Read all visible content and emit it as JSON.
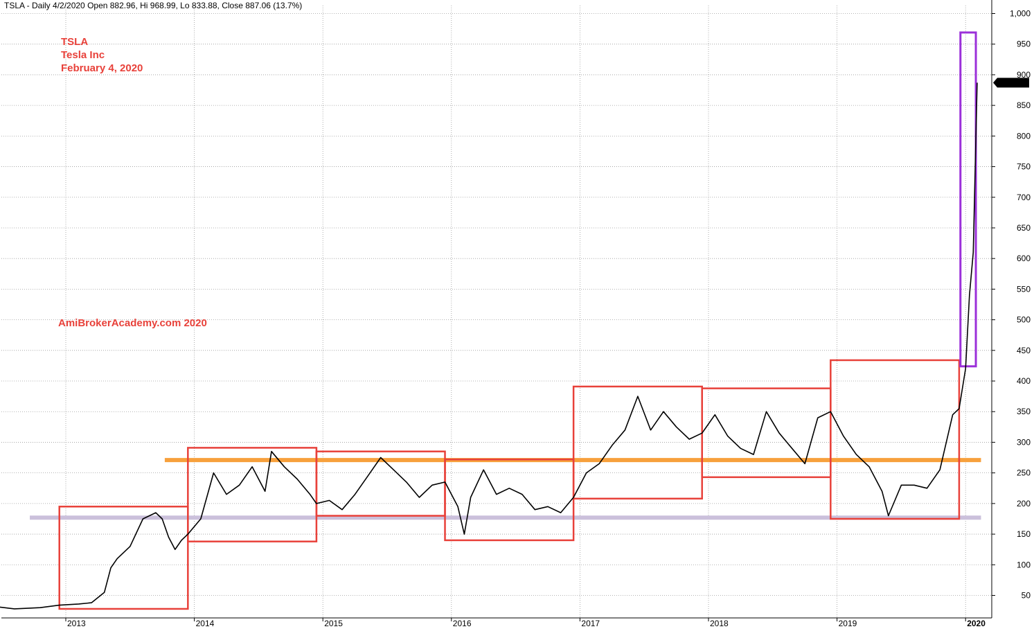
{
  "header": {
    "title": "TSLA - Daily 4/2/2020 Open 882.96, Hi 968.99, Lo 833.88, Close 887.06 (13.7%)"
  },
  "annotations": {
    "ticker": "TSLA",
    "company": "Tesla Inc",
    "date": "February 4, 2020",
    "watermark": "AmiBrokerAcademy.com   2020",
    "text_color": "#e8413a"
  },
  "chart_data": {
    "type": "line",
    "title": "TSLA - Daily 4/2/2020 Open 882.96, Hi 968.99, Lo 833.88, Close 887.06 (13.7%)",
    "xlabel": "",
    "ylabel": "",
    "ylim": [
      0,
      1000
    ],
    "y_ticks": [
      50,
      100,
      150,
      200,
      250,
      300,
      350,
      400,
      450,
      500,
      550,
      600,
      650,
      700,
      750,
      800,
      850,
      900,
      950,
      1000
    ],
    "y_tick_labels": [
      "50",
      "100",
      "150",
      "200",
      "250",
      "300",
      "350",
      "400",
      "450",
      "500",
      "550",
      "600",
      "650",
      "700",
      "750",
      "800",
      "850",
      "900",
      "950",
      "1,000"
    ],
    "x_range": [
      2012.4,
      2020.2
    ],
    "x_ticks": [
      2013,
      2014,
      2015,
      2016,
      2017,
      2018,
      2019,
      2020
    ],
    "x_tick_labels": [
      "2013",
      "2014",
      "2015",
      "2016",
      "2017",
      "2018",
      "2019",
      "2020"
    ],
    "grid": true,
    "last_value_label": "887.06",
    "price_series": {
      "x": [
        2012.4,
        2012.6,
        2012.8,
        2012.95,
        2013.1,
        2013.2,
        2013.3,
        2013.35,
        2013.4,
        2013.5,
        2013.6,
        2013.7,
        2013.75,
        2013.8,
        2013.85,
        2013.9,
        2013.95,
        2014.05,
        2014.15,
        2014.25,
        2014.35,
        2014.45,
        2014.55,
        2014.6,
        2014.7,
        2014.8,
        2014.9,
        2014.95,
        2015.05,
        2015.15,
        2015.25,
        2015.35,
        2015.45,
        2015.55,
        2015.65,
        2015.75,
        2015.85,
        2015.95,
        2016.05,
        2016.1,
        2016.15,
        2016.25,
        2016.35,
        2016.45,
        2016.55,
        2016.65,
        2016.75,
        2016.85,
        2016.95,
        2017.05,
        2017.15,
        2017.25,
        2017.35,
        2017.45,
        2017.55,
        2017.65,
        2017.75,
        2017.85,
        2017.95,
        2018.05,
        2018.15,
        2018.25,
        2018.35,
        2018.45,
        2018.55,
        2018.65,
        2018.75,
        2018.85,
        2018.95,
        2019.05,
        2019.15,
        2019.25,
        2019.35,
        2019.4,
        2019.5,
        2019.6,
        2019.7,
        2019.8,
        2019.9,
        2019.95,
        2020.0,
        2020.03,
        2020.06,
        2020.09
      ],
      "y": [
        33,
        28,
        30,
        34,
        36,
        38,
        55,
        95,
        110,
        130,
        175,
        185,
        175,
        145,
        125,
        140,
        150,
        175,
        250,
        215,
        230,
        260,
        220,
        285,
        260,
        240,
        215,
        200,
        205,
        190,
        215,
        245,
        275,
        255,
        235,
        210,
        230,
        235,
        195,
        150,
        210,
        255,
        215,
        225,
        215,
        190,
        195,
        185,
        210,
        250,
        265,
        295,
        320,
        375,
        320,
        350,
        325,
        305,
        315,
        345,
        310,
        290,
        280,
        350,
        315,
        290,
        265,
        340,
        350,
        310,
        280,
        260,
        220,
        180,
        230,
        230,
        225,
        255,
        345,
        355,
        420,
        540,
        610,
        887
      ]
    },
    "boxes": [
      {
        "x0": 2012.95,
        "x1": 2013.95,
        "y0": 28,
        "y1": 195
      },
      {
        "x0": 2013.95,
        "x1": 2014.95,
        "y0": 138,
        "y1": 291
      },
      {
        "x0": 2014.95,
        "x1": 2015.95,
        "y0": 180,
        "y1": 285
      },
      {
        "x0": 2015.95,
        "x1": 2016.95,
        "y0": 140,
        "y1": 272
      },
      {
        "x0": 2016.95,
        "x1": 2017.95,
        "y0": 208,
        "y1": 391
      },
      {
        "x0": 2017.95,
        "x1": 2018.95,
        "y0": 243,
        "y1": 388
      },
      {
        "x0": 2018.95,
        "x1": 2019.95,
        "y0": 175,
        "y1": 434
      },
      {
        "x0": 2019.96,
        "x1": 2020.08,
        "y0": 424,
        "y1": 969
      }
    ],
    "horizontal_lines": [
      {
        "y": 271,
        "x0": 2013.77,
        "x1": 2020.12,
        "color": "#f7a03c"
      },
      {
        "y": 177,
        "x0": 2012.72,
        "x1": 2020.12,
        "color": "#cbc0db"
      }
    ],
    "colors": {
      "price": "#000000",
      "box": "#e8413a",
      "breakout_box": "#9b30d9",
      "grid": "#9a9a9a"
    }
  }
}
